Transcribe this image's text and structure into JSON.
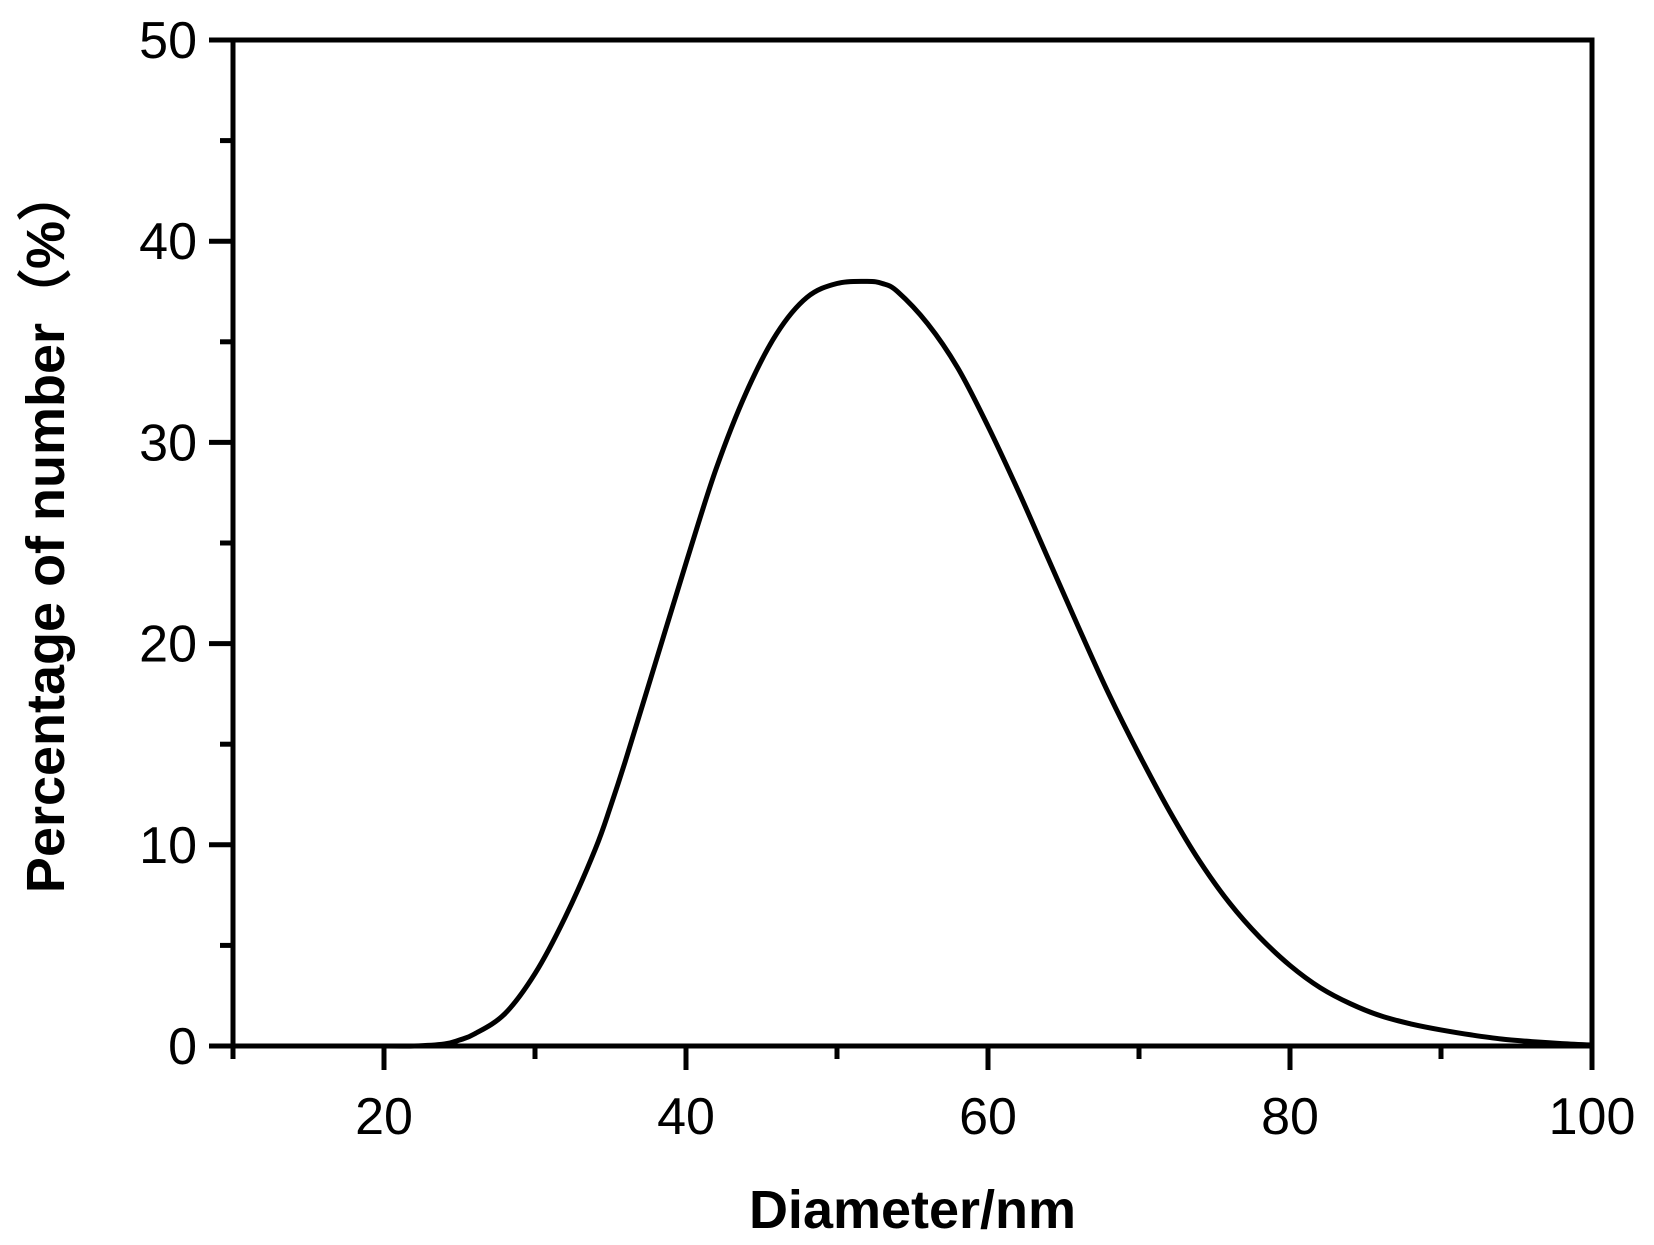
{
  "chart_data": {
    "type": "line",
    "title": "",
    "xlabel": "Diameter/nm",
    "ylabel": "Percentage of number（%）",
    "xlim": [
      10,
      100
    ],
    "ylim": [
      0,
      50
    ],
    "x_ticks": [
      20,
      40,
      60,
      80,
      100
    ],
    "x_minor_ticks": [
      10,
      30,
      50,
      70,
      90
    ],
    "y_ticks": [
      0,
      10,
      20,
      30,
      40,
      50
    ],
    "y_minor_ticks": [
      5,
      15,
      25,
      35,
      45
    ],
    "grid": false,
    "legend": "none",
    "colors": {
      "line": "#000000",
      "axis": "#000000",
      "background": "#ffffff"
    },
    "series": [
      {
        "x": [
          10,
          20,
          22,
          24,
          25,
          26,
          28,
          30,
          32,
          34,
          35,
          36,
          38,
          40,
          42,
          44,
          46,
          48,
          50,
          52,
          53,
          54,
          56,
          58,
          60,
          62,
          64,
          66,
          68,
          70,
          72,
          74,
          76,
          78,
          80,
          82,
          84,
          86,
          88,
          90,
          92,
          94,
          96,
          98,
          100
        ],
        "y": [
          0,
          0,
          0,
          0.1,
          0.3,
          0.6,
          1.6,
          3.6,
          6.4,
          9.8,
          11.9,
          14.2,
          19.1,
          24.0,
          28.7,
          32.5,
          35.4,
          37.2,
          37.9,
          38.0,
          37.9,
          37.5,
          35.9,
          33.7,
          30.8,
          27.6,
          24.2,
          20.8,
          17.5,
          14.5,
          11.7,
          9.2,
          7.1,
          5.4,
          4.0,
          2.9,
          2.1,
          1.5,
          1.1,
          0.8,
          0.55,
          0.35,
          0.22,
          0.12,
          0.05
        ]
      }
    ]
  }
}
